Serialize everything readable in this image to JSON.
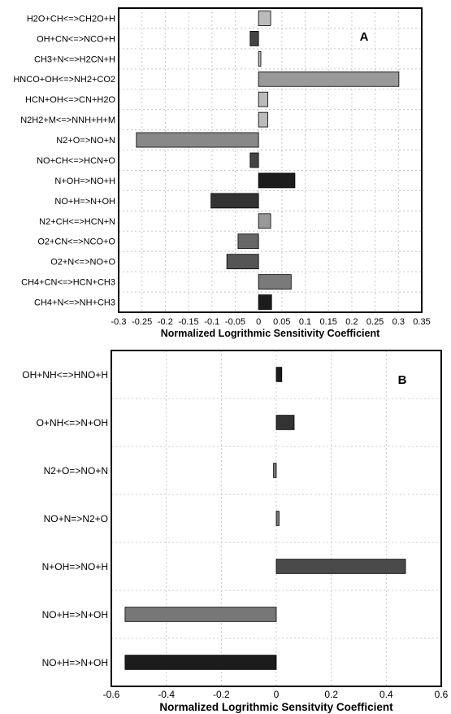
{
  "chart_data": [
    {
      "type": "bar",
      "orientation": "horizontal",
      "panel_label": "A",
      "xlabel": "Normalized Logrithmic Sensitivity Coefficient",
      "xlim": [
        -0.3,
        0.35
      ],
      "xticks": [
        "-0.3",
        "-0.25",
        "-0.2",
        "-0.15",
        "-0.1",
        "-0.05",
        "0",
        "0.05",
        "0.1",
        "0.15",
        "0.2",
        "0.25",
        "0.3",
        "0.35"
      ],
      "grid": true,
      "categories": [
        "H2O+CH<=>CH2O+H",
        "OH+CN<=>NCO+H",
        "CH3+N<=>H2CN+H",
        "HNCO+OH<=>NH2+CO2",
        "HCN+OH<=>CN+H2O",
        "N2H2+M<=>NNH+H+M",
        "N2+O=>NO+N",
        "NO+CH<=>HCN+O",
        "N+OH=>NO+H",
        "NO+H=>N+OH",
        "N2+CH<=>HCN+N",
        "O2+CN<=>NCO+O",
        "O2+N<=>NO+O",
        "CH4+CN<=>HCN+CH3",
        "CH4+N<=>NH+CH3"
      ],
      "values": [
        0.026,
        -0.018,
        0.005,
        0.301,
        0.02,
        0.02,
        -0.262,
        -0.018,
        0.078,
        -0.102,
        0.026,
        -0.044,
        -0.068,
        0.07,
        0.028
      ],
      "colors": [
        "#bbbbbb",
        "#444444",
        "#bbbbbb",
        "#999999",
        "#bbbbbb",
        "#bbbbbb",
        "#888888",
        "#444444",
        "#1c1c1c",
        "#333333",
        "#999999",
        "#666666",
        "#555555",
        "#7a7a7a",
        "#1c1c1c"
      ]
    },
    {
      "type": "bar",
      "orientation": "horizontal",
      "panel_label": "B",
      "xlabel": "Normalized Logrithmic Sensitvity Coefficient",
      "xlim": [
        -0.6,
        0.6
      ],
      "xticks": [
        "-0.6",
        "-0.4",
        "-0.2",
        "0",
        "0.2",
        "0.4",
        "0.6"
      ],
      "grid": true,
      "categories": [
        "OH+NH<=>HNO+H",
        "O+NH<=>N+OH",
        "N2+O=>NO+N",
        "NO+N=>N2+O",
        "N+OH=>NO+H",
        "NO+H=>N+OH",
        "NO+H=>N+OH"
      ],
      "values": [
        0.02,
        0.065,
        -0.01,
        0.01,
        0.47,
        -0.55,
        -0.55
      ],
      "colors": [
        "#1c1c1c",
        "#333333",
        "#777777",
        "#777777",
        "#4a4a4a",
        "#777777",
        "#1c1c1c"
      ]
    }
  ]
}
